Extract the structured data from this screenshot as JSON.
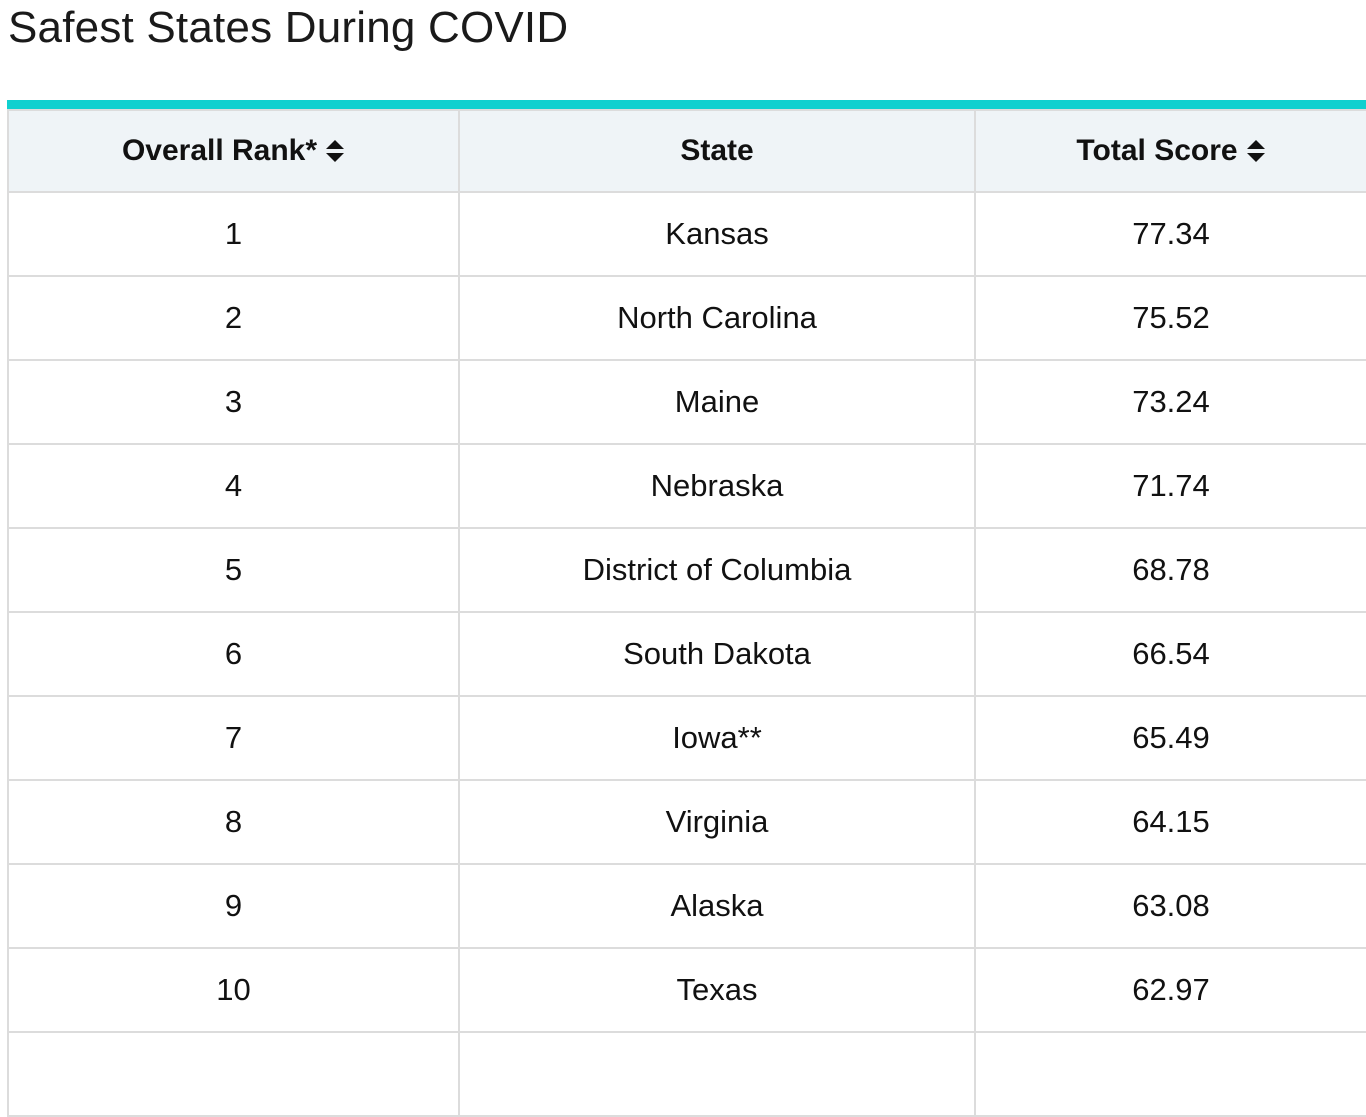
{
  "page": {
    "title": "Safest States During COVID"
  },
  "table": {
    "accent_color": "#0fd0cf",
    "header_bg": "#eff4f7",
    "columns": [
      {
        "label": "Overall Rank*",
        "sortable": true,
        "icon": "sort-icon"
      },
      {
        "label": "State",
        "sortable": false
      },
      {
        "label": "Total Score",
        "sortable": true,
        "icon": "sort-icon"
      }
    ],
    "rows": [
      {
        "rank": "1",
        "state": "Kansas",
        "score": "77.34"
      },
      {
        "rank": "2",
        "state": "North Carolina",
        "score": "75.52"
      },
      {
        "rank": "3",
        "state": "Maine",
        "score": "73.24"
      },
      {
        "rank": "4",
        "state": "Nebraska",
        "score": "71.74"
      },
      {
        "rank": "5",
        "state": "District of Columbia",
        "score": "68.78"
      },
      {
        "rank": "6",
        "state": "South Dakota",
        "score": "66.54"
      },
      {
        "rank": "7",
        "state": "Iowa**",
        "score": "65.49"
      },
      {
        "rank": "8",
        "state": "Virginia",
        "score": "64.15"
      },
      {
        "rank": "9",
        "state": "Alaska",
        "score": "63.08"
      },
      {
        "rank": "10",
        "state": "Texas",
        "score": "62.97"
      }
    ]
  }
}
